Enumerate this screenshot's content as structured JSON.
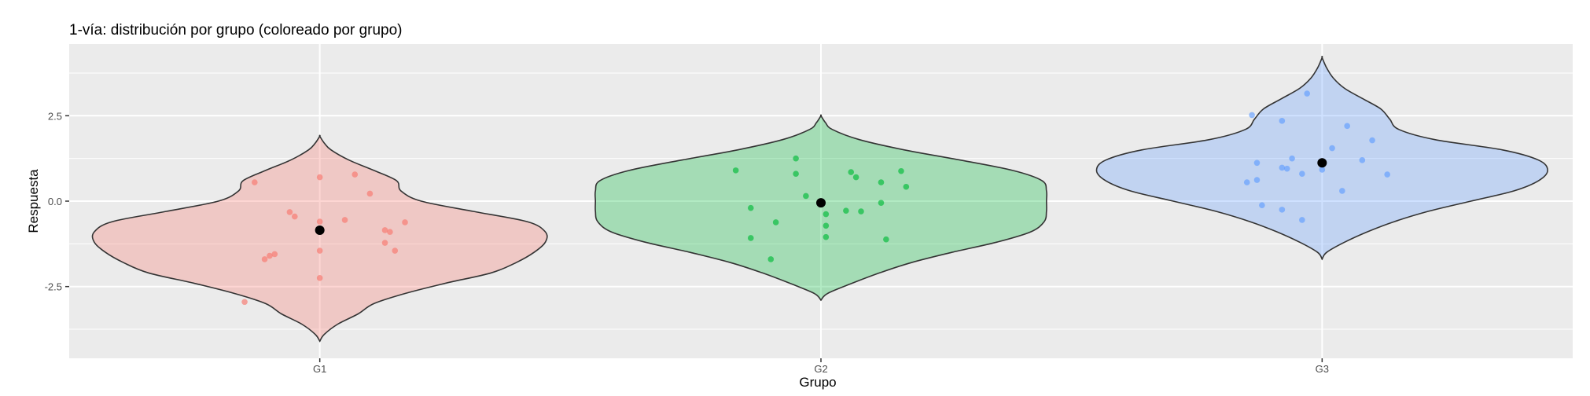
{
  "chart_data": {
    "type": "violin",
    "title": "1-vía: distribución por grupo (coloreado por grupo)",
    "xlabel": "Grupo",
    "ylabel": "Respuesta",
    "categories": [
      "G1",
      "G2",
      "G3"
    ],
    "ylim": [
      -4.6,
      4.6
    ],
    "yticks": [
      -2.5,
      0.0,
      2.5
    ],
    "ytick_labels": [
      "-2.5",
      "0.0",
      "2.5"
    ],
    "grid": true,
    "legend": "none",
    "colors": {
      "G1": "#F8766D",
      "G2": "#00BA38",
      "G3": "#619CFF",
      "panel": "#EBEBEB",
      "mean": "#000000"
    },
    "groups": [
      {
        "name": "G1",
        "mean": -0.85,
        "violin_profile": [
          [
            -4.1,
            0.0
          ],
          [
            -3.9,
            0.02
          ],
          [
            -3.6,
            0.08
          ],
          [
            -3.3,
            0.17
          ],
          [
            -3.0,
            0.24
          ],
          [
            -2.7,
            0.38
          ],
          [
            -2.4,
            0.56
          ],
          [
            -2.1,
            0.76
          ],
          [
            -1.8,
            0.87
          ],
          [
            -1.5,
            0.95
          ],
          [
            -1.2,
            1.0
          ],
          [
            -0.9,
            1.0
          ],
          [
            -0.6,
            0.92
          ],
          [
            -0.3,
            0.68
          ],
          [
            0.0,
            0.45
          ],
          [
            0.3,
            0.36
          ],
          [
            0.6,
            0.34
          ],
          [
            0.9,
            0.24
          ],
          [
            1.2,
            0.13
          ],
          [
            1.5,
            0.05
          ],
          [
            1.7,
            0.02
          ],
          [
            1.9,
            0.0
          ]
        ],
        "points": [
          {
            "x": -0.13,
            "y": 0.55
          },
          {
            "x": 0.0,
            "y": 0.7
          },
          {
            "x": 0.07,
            "y": 0.78
          },
          {
            "x": 0.1,
            "y": 0.22
          },
          {
            "x": -0.06,
            "y": -0.32
          },
          {
            "x": -0.05,
            "y": -0.45
          },
          {
            "x": 0.05,
            "y": -0.55
          },
          {
            "x": 0.0,
            "y": -0.6
          },
          {
            "x": 0.17,
            "y": -0.62
          },
          {
            "x": 0.13,
            "y": -0.85
          },
          {
            "x": 0.14,
            "y": -0.9
          },
          {
            "x": 0.13,
            "y": -1.22
          },
          {
            "x": 0.15,
            "y": -1.45
          },
          {
            "x": 0.0,
            "y": -1.45
          },
          {
            "x": -0.09,
            "y": -1.55
          },
          {
            "x": -0.1,
            "y": -1.6
          },
          {
            "x": -0.11,
            "y": -1.7
          },
          {
            "x": 0.0,
            "y": -2.25
          },
          {
            "x": -0.15,
            "y": -2.95
          }
        ]
      },
      {
        "name": "G2",
        "mean": -0.05,
        "violin_profile": [
          [
            -2.9,
            0.0
          ],
          [
            -2.7,
            0.03
          ],
          [
            -2.4,
            0.14
          ],
          [
            -2.1,
            0.26
          ],
          [
            -1.8,
            0.4
          ],
          [
            -1.5,
            0.58
          ],
          [
            -1.2,
            0.78
          ],
          [
            -0.9,
            0.93
          ],
          [
            -0.6,
            0.99
          ],
          [
            -0.3,
            1.0
          ],
          [
            0.0,
            1.0
          ],
          [
            0.3,
            1.0
          ],
          [
            0.6,
            0.98
          ],
          [
            0.9,
            0.85
          ],
          [
            1.2,
            0.62
          ],
          [
            1.5,
            0.37
          ],
          [
            1.8,
            0.17
          ],
          [
            2.1,
            0.05
          ],
          [
            2.3,
            0.02
          ],
          [
            2.5,
            0.0
          ]
        ],
        "points": [
          {
            "x": -0.17,
            "y": 0.9
          },
          {
            "x": -0.05,
            "y": 1.25
          },
          {
            "x": -0.05,
            "y": 0.8
          },
          {
            "x": 0.06,
            "y": 0.85
          },
          {
            "x": 0.07,
            "y": 0.7
          },
          {
            "x": 0.16,
            "y": 0.88
          },
          {
            "x": 0.12,
            "y": 0.55
          },
          {
            "x": 0.17,
            "y": 0.42
          },
          {
            "x": -0.03,
            "y": 0.15
          },
          {
            "x": 0.12,
            "y": -0.05
          },
          {
            "x": -0.14,
            "y": -0.2
          },
          {
            "x": 0.05,
            "y": -0.28
          },
          {
            "x": 0.08,
            "y": -0.3
          },
          {
            "x": 0.01,
            "y": -0.38
          },
          {
            "x": -0.09,
            "y": -0.62
          },
          {
            "x": 0.01,
            "y": -0.72
          },
          {
            "x": 0.01,
            "y": -1.05
          },
          {
            "x": -0.14,
            "y": -1.08
          },
          {
            "x": 0.13,
            "y": -1.12
          },
          {
            "x": -0.1,
            "y": -1.7
          }
        ]
      },
      {
        "name": "G3",
        "mean": 1.12,
        "violin_profile": [
          [
            -1.7,
            0.0
          ],
          [
            -1.5,
            0.02
          ],
          [
            -1.2,
            0.1
          ],
          [
            -0.9,
            0.2
          ],
          [
            -0.6,
            0.32
          ],
          [
            -0.3,
            0.47
          ],
          [
            0.0,
            0.66
          ],
          [
            0.3,
            0.85
          ],
          [
            0.6,
            0.96
          ],
          [
            0.9,
            1.0
          ],
          [
            1.2,
            0.96
          ],
          [
            1.5,
            0.8
          ],
          [
            1.8,
            0.5
          ],
          [
            2.1,
            0.34
          ],
          [
            2.4,
            0.3
          ],
          [
            2.7,
            0.26
          ],
          [
            3.0,
            0.18
          ],
          [
            3.3,
            0.1
          ],
          [
            3.6,
            0.05
          ],
          [
            3.9,
            0.02
          ],
          [
            4.2,
            0.0
          ]
        ],
        "points": [
          {
            "x": -0.03,
            "y": 3.15
          },
          {
            "x": -0.14,
            "y": 2.52
          },
          {
            "x": -0.08,
            "y": 2.35
          },
          {
            "x": 0.05,
            "y": 2.2
          },
          {
            "x": 0.1,
            "y": 1.78
          },
          {
            "x": 0.02,
            "y": 1.55
          },
          {
            "x": -0.06,
            "y": 1.25
          },
          {
            "x": 0.08,
            "y": 1.2
          },
          {
            "x": -0.13,
            "y": 1.12
          },
          {
            "x": -0.08,
            "y": 0.98
          },
          {
            "x": -0.07,
            "y": 0.95
          },
          {
            "x": 0.0,
            "y": 0.92
          },
          {
            "x": -0.04,
            "y": 0.8
          },
          {
            "x": 0.13,
            "y": 0.78
          },
          {
            "x": -0.13,
            "y": 0.62
          },
          {
            "x": -0.15,
            "y": 0.55
          },
          {
            "x": 0.04,
            "y": 0.3
          },
          {
            "x": -0.12,
            "y": -0.12
          },
          {
            "x": -0.08,
            "y": -0.25
          },
          {
            "x": -0.04,
            "y": -0.55
          }
        ]
      }
    ]
  }
}
